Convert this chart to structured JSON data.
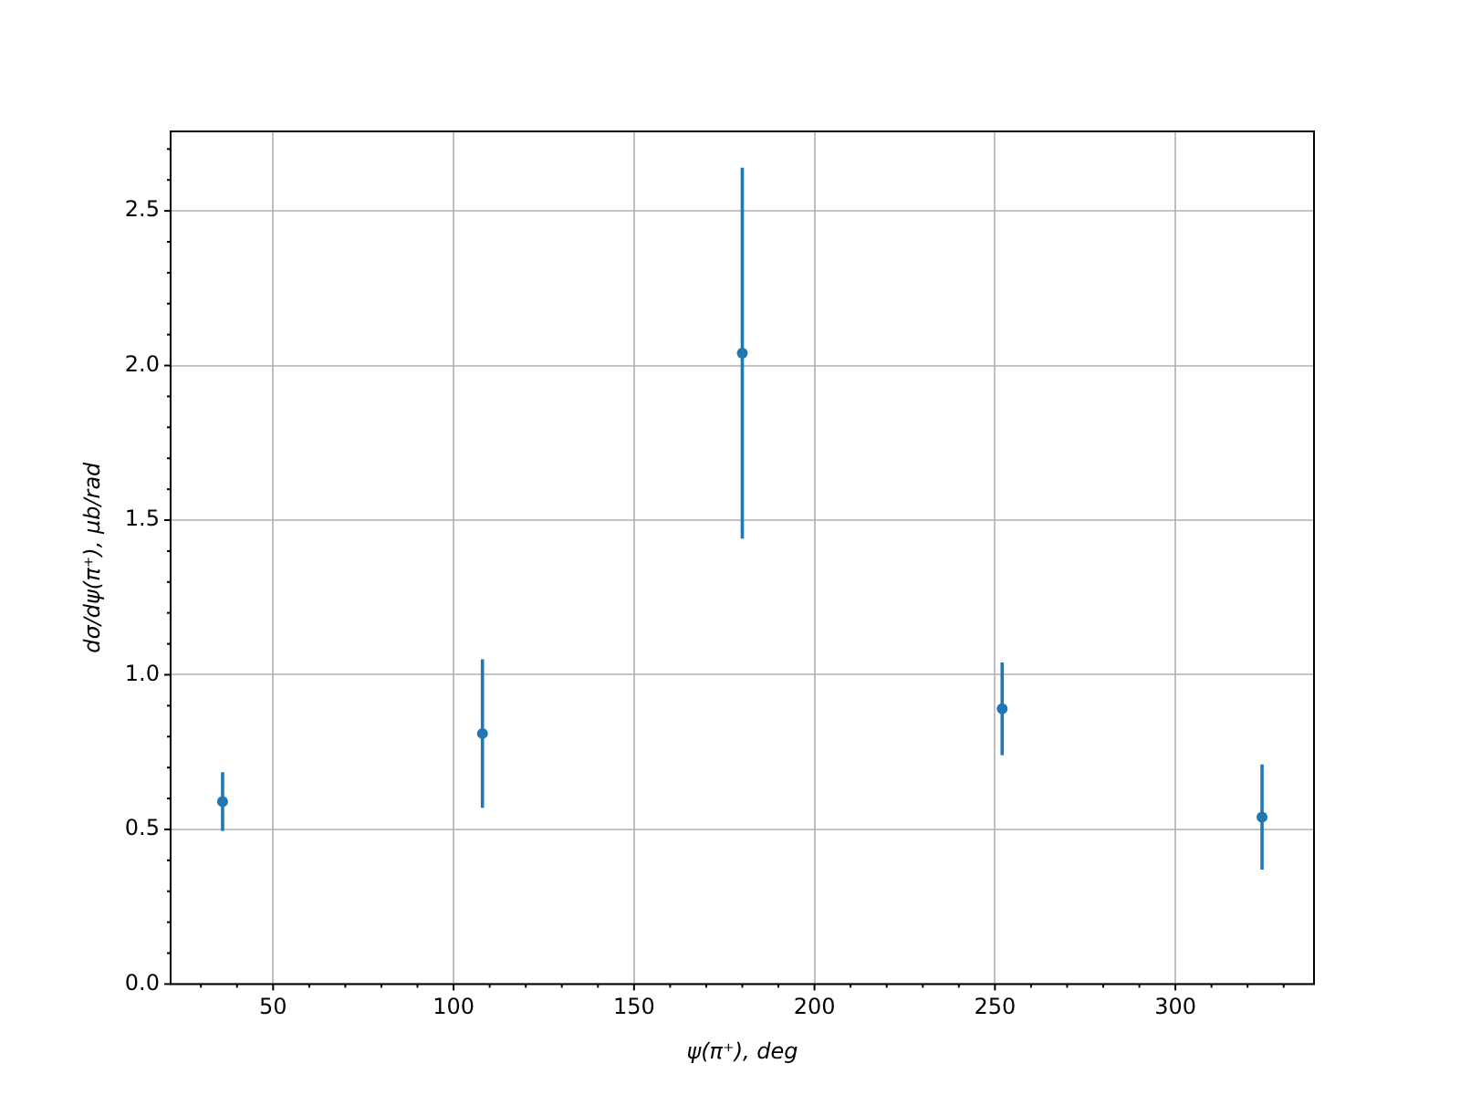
{
  "chart_data": {
    "type": "scatter",
    "xlabel": "ψ(π⁺), deg",
    "ylabel": "dσ/dψ(π⁺), μb/rad",
    "x": [
      36,
      108,
      180,
      252,
      324
    ],
    "series": [
      {
        "color": "#1f77b4",
        "values": [
          0.59,
          0.81,
          2.04,
          0.89,
          0.54
        ],
        "errors": [
          0.095,
          0.24,
          0.6,
          0.15,
          0.17
        ]
      }
    ],
    "xlim": [
      21.6,
      338.4
    ],
    "xticks": [
      {
        "value": 30,
        "label": null
      },
      {
        "value": 40,
        "label": null
      },
      50,
      {
        "value": 60,
        "label": null
      },
      {
        "value": 70,
        "label": null
      },
      {
        "value": 80,
        "label": null
      },
      {
        "value": 90,
        "label": null
      },
      100,
      {
        "value": 110,
        "label": null
      },
      {
        "value": 120,
        "label": null
      },
      {
        "value": 130,
        "label": null
      },
      {
        "value": 140,
        "label": null
      },
      150,
      {
        "value": 160,
        "label": null
      },
      {
        "value": 170,
        "label": null
      },
      {
        "value": 180,
        "label": null
      },
      {
        "value": 190,
        "label": null
      },
      200,
      {
        "value": 210,
        "label": null
      },
      {
        "value": 220,
        "label": null
      },
      {
        "value": 230,
        "label": null
      },
      {
        "value": 240,
        "label": null
      },
      250,
      {
        "value": 260,
        "label": null
      },
      {
        "value": 270,
        "label": null
      },
      {
        "value": 280,
        "label": null
      },
      {
        "value": 290,
        "label": null
      },
      300,
      {
        "value": 310,
        "label": null
      },
      {
        "value": 320,
        "label": null
      },
      {
        "value": 330,
        "label": null
      }
    ],
    "ylim": [
      0,
      2.757
    ],
    "yticks": [
      {
        "value": 0,
        "label": "0.0"
      },
      {
        "value": 0.1,
        "label": null
      },
      {
        "value": 0.2,
        "label": null
      },
      {
        "value": 0.3,
        "label": null
      },
      {
        "value": 0.4,
        "label": null
      },
      {
        "value": 0.5,
        "label": "0.5"
      },
      {
        "value": 0.6,
        "label": null
      },
      {
        "value": 0.7,
        "label": null
      },
      {
        "value": 0.8,
        "label": null
      },
      {
        "value": 0.9,
        "label": null
      },
      {
        "value": 1,
        "label": "1.0"
      },
      {
        "value": 1.1,
        "label": null
      },
      {
        "value": 1.2,
        "label": null
      },
      {
        "value": 1.3,
        "label": null
      },
      {
        "value": 1.4,
        "label": null
      },
      {
        "value": 1.5,
        "label": "1.5"
      },
      {
        "value": 1.6,
        "label": null
      },
      {
        "value": 1.7,
        "label": null
      },
      {
        "value": 1.8,
        "label": null
      },
      {
        "value": 1.9,
        "label": null
      },
      {
        "value": 2,
        "label": "2.0"
      },
      {
        "value": 2.1,
        "label": null
      },
      {
        "value": 2.2,
        "label": null
      },
      {
        "value": 2.3,
        "label": null
      },
      {
        "value": 2.4,
        "label": null
      },
      {
        "value": 2.5,
        "label": "2.5"
      },
      {
        "value": 2.6,
        "label": null
      },
      {
        "value": 2.7,
        "label": null
      }
    ],
    "grid": true,
    "marker": "circle",
    "legend": false
  }
}
